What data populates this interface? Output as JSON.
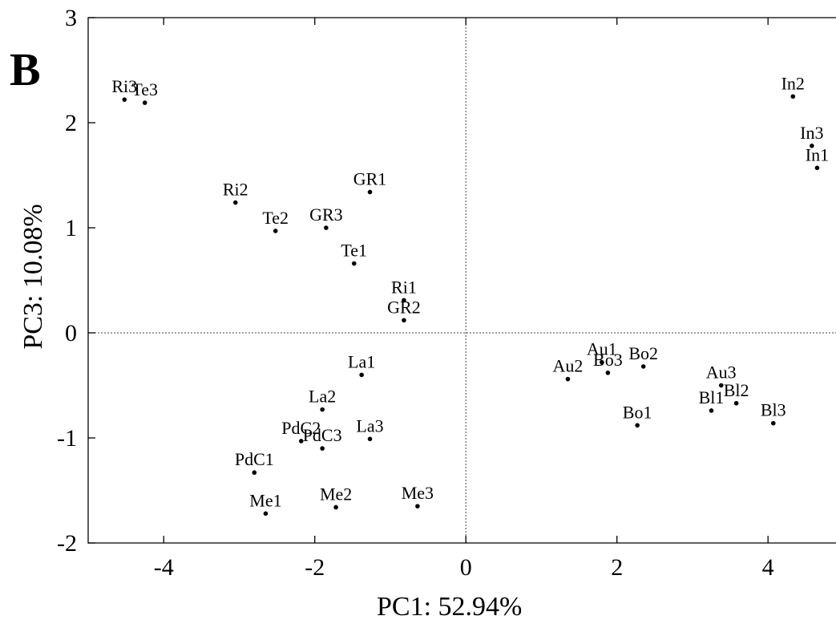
{
  "panel_label": "B",
  "chart_data": {
    "type": "scatter",
    "xlabel": "PC1: 52.94%",
    "ylabel": "PC3: 10.08%",
    "xlim": [
      -5,
      4.9
    ],
    "ylim": [
      -2,
      3
    ],
    "x_ticks": [
      -4,
      -2,
      0,
      2,
      4
    ],
    "y_ticks": [
      -2,
      -1,
      0,
      1,
      2,
      3
    ],
    "x_tick_labels": [
      "-4",
      "-2",
      "0",
      "2",
      "4"
    ],
    "y_tick_labels": [
      "-2",
      "-1",
      "0",
      "1",
      "2",
      "3"
    ],
    "grid": false,
    "reference_lines": {
      "x": 0,
      "y": 0,
      "style": "dotted"
    },
    "points": [
      {
        "label": "Ri3",
        "x": -4.52,
        "y": 2.22
      },
      {
        "label": "Te3",
        "x": -4.25,
        "y": 2.19
      },
      {
        "label": "Ri2",
        "x": -3.05,
        "y": 1.24
      },
      {
        "label": "Te2",
        "x": -2.52,
        "y": 0.97
      },
      {
        "label": "GR3",
        "x": -1.85,
        "y": 1.0
      },
      {
        "label": "GR1",
        "x": -1.27,
        "y": 1.34
      },
      {
        "label": "Te1",
        "x": -1.48,
        "y": 0.66
      },
      {
        "label": "Ri1",
        "x": -0.82,
        "y": 0.31
      },
      {
        "label": "GR2",
        "x": -0.82,
        "y": 0.12
      },
      {
        "label": "La1",
        "x": -1.38,
        "y": -0.4
      },
      {
        "label": "La2",
        "x": -1.9,
        "y": -0.73
      },
      {
        "label": "PdC2",
        "x": -2.18,
        "y": -1.03
      },
      {
        "label": "PdC3",
        "x": -1.9,
        "y": -1.1
      },
      {
        "label": "La3",
        "x": -1.27,
        "y": -1.01
      },
      {
        "label": "PdC1",
        "x": -2.8,
        "y": -1.33
      },
      {
        "label": "Me1",
        "x": -2.65,
        "y": -1.72
      },
      {
        "label": "Me2",
        "x": -1.72,
        "y": -1.66
      },
      {
        "label": "Me3",
        "x": -0.64,
        "y": -1.65
      },
      {
        "label": "Au2",
        "x": 1.35,
        "y": -0.44
      },
      {
        "label": "Au1",
        "x": 1.8,
        "y": -0.28
      },
      {
        "label": "Bo3",
        "x": 1.88,
        "y": -0.38
      },
      {
        "label": "Bo2",
        "x": 2.35,
        "y": -0.32
      },
      {
        "label": "Bo1",
        "x": 2.27,
        "y": -0.88
      },
      {
        "label": "Au3",
        "x": 3.38,
        "y": -0.5
      },
      {
        "label": "Bl1",
        "x": 3.25,
        "y": -0.74
      },
      {
        "label": "Bl2",
        "x": 3.58,
        "y": -0.67
      },
      {
        "label": "Bl3",
        "x": 4.07,
        "y": -0.86
      },
      {
        "label": "In2",
        "x": 4.33,
        "y": 2.25
      },
      {
        "label": "In3",
        "x": 4.58,
        "y": 1.78
      },
      {
        "label": "In1",
        "x": 4.65,
        "y": 1.57
      }
    ]
  }
}
